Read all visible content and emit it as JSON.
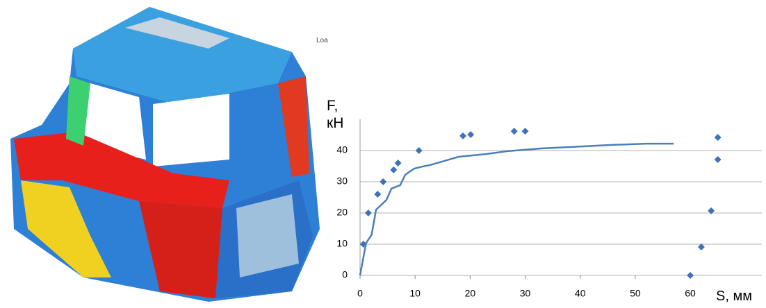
{
  "chart_data": {
    "type": "scatter",
    "annotation": "Loa",
    "x_label": "S, мм",
    "y_label": "F, кН",
    "xlim": [
      0,
      73
    ],
    "ylim": [
      0,
      50
    ],
    "xticks": [
      0,
      10,
      20,
      30,
      40,
      50,
      60
    ],
    "yticks": [
      0,
      10,
      20,
      30,
      40
    ],
    "grid": true,
    "series": [
      {
        "mode": "markers",
        "color": "#3f72b8",
        "x": [
          0.6,
          1.5,
          3.2,
          4.2,
          6.1,
          6.9,
          10.7,
          18.7,
          20.1,
          28,
          30,
          60,
          62,
          63.8,
          65,
          65
        ],
        "values": [
          10,
          20,
          26,
          30,
          33.8,
          36,
          40,
          44.7,
          45.1,
          46.2,
          46.2,
          0,
          9.1,
          20.7,
          37.1,
          44.2
        ]
      },
      {
        "mode": "line",
        "color": "#4a7ebb",
        "x": [
          0,
          1.1,
          2.1,
          2.9,
          4.8,
          5.7,
          7.3,
          8.2,
          9.8,
          11.4,
          12.6,
          15.4,
          17.9,
          23,
          26.8,
          33.1,
          38.1,
          45.7,
          52,
          57
        ],
        "values": [
          0,
          10.4,
          13,
          21,
          24.2,
          27.8,
          28.9,
          32.2,
          34.2,
          34.9,
          35.3,
          36.7,
          38,
          38.9,
          39.8,
          40.7,
          41.1,
          41.8,
          42.2,
          42.2
        ]
      }
    ]
  }
}
